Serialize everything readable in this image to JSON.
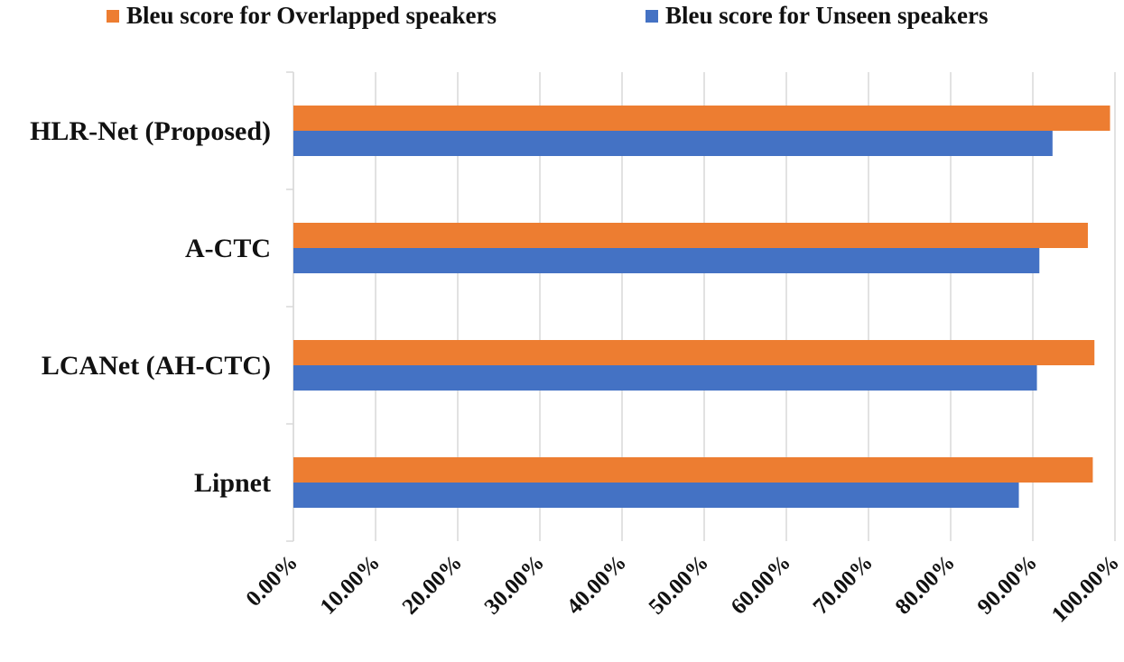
{
  "chart_data": {
    "type": "bar",
    "orientation": "horizontal",
    "categories": [
      "HLR-Net (Proposed)",
      "A-CTC",
      "LCANet (AH-CTC)",
      "Lipnet"
    ],
    "series": [
      {
        "name": "Bleu score for Overlapped speakers",
        "color": "#ED7D31",
        "values": [
          99.4,
          96.7,
          97.5,
          97.3
        ]
      },
      {
        "name": "Bleu score for Unseen speakers",
        "color": "#4472C4",
        "values": [
          92.4,
          90.8,
          90.5,
          88.3
        ]
      }
    ],
    "x_ticks": [
      "0.00%",
      "10.00%",
      "20.00%",
      "30.00%",
      "40.00%",
      "50.00%",
      "60.00%",
      "70.00%",
      "80.00%",
      "90.00%",
      "100.00%"
    ],
    "xlim": [
      0,
      100
    ],
    "grid": "vertical",
    "legend_position": "top"
  }
}
